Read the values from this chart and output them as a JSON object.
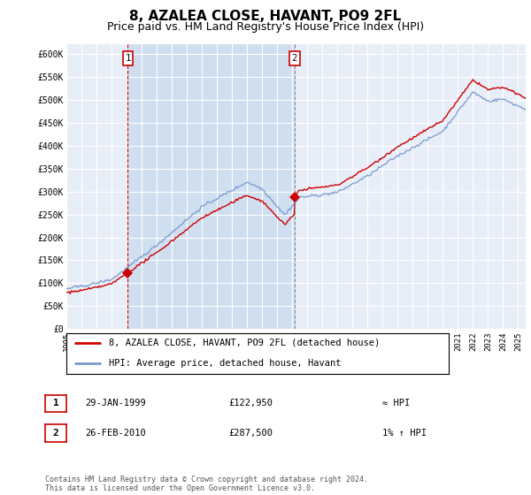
{
  "title": "8, AZALEA CLOSE, HAVANT, PO9 2FL",
  "subtitle": "Price paid vs. HM Land Registry's House Price Index (HPI)",
  "title_fontsize": 11,
  "subtitle_fontsize": 9,
  "ylabel_ticks": [
    "£0",
    "£50K",
    "£100K",
    "£150K",
    "£200K",
    "£250K",
    "£300K",
    "£350K",
    "£400K",
    "£450K",
    "£500K",
    "£550K",
    "£600K"
  ],
  "ylim": [
    0,
    620000
  ],
  "ytick_values": [
    0,
    50000,
    100000,
    150000,
    200000,
    250000,
    300000,
    350000,
    400000,
    450000,
    500000,
    550000,
    600000
  ],
  "background_color": "#ffffff",
  "plot_bg_color": "#e8eef8",
  "highlight_bg_color": "#d0dff0",
  "grid_color": "#ffffff",
  "hpi_color": "#7799cc",
  "price_color": "#cc0000",
  "legend_entry1": "8, AZALEA CLOSE, HAVANT, PO9 2FL (detached house)",
  "legend_entry2": "HPI: Average price, detached house, Havant",
  "annotation1_label": "1",
  "annotation1_date": "29-JAN-1999",
  "annotation1_price": "£122,950",
  "annotation1_hpi": "≈ HPI",
  "annotation2_label": "2",
  "annotation2_date": "26-FEB-2010",
  "annotation2_price": "£287,500",
  "annotation2_hpi": "1% ↑ HPI",
  "footer": "Contains HM Land Registry data © Crown copyright and database right 2024.\nThis data is licensed under the Open Government Licence v3.0.",
  "sale1_year": 1999.08,
  "sale1_value": 122950,
  "sale2_year": 2010.15,
  "sale2_value": 287500,
  "xmin": 1995,
  "xmax": 2025.5
}
